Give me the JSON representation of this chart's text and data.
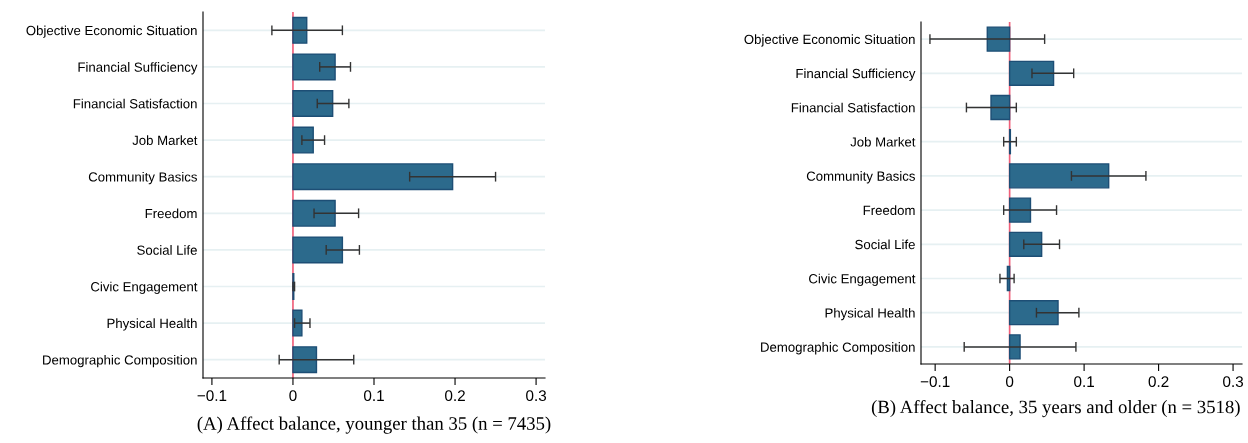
{
  "chart_data": [
    {
      "type": "bar",
      "orientation": "horizontal",
      "title": "(A) Affect balance, younger than 35 (n = 7435)",
      "categories": [
        "Objective Economic Situation",
        "Financial Sufficiency",
        "Financial Satisfaction",
        "Job Market",
        "Community Basics",
        "Freedom",
        "Social Life",
        "Civic Engagement",
        "Physical Health",
        "Demographic Composition"
      ],
      "values": [
        0.017,
        0.052,
        0.049,
        0.025,
        0.197,
        0.052,
        0.061,
        0.001,
        0.011,
        0.029
      ],
      "errors": [
        [
          -0.026,
          0.061
        ],
        [
          0.033,
          0.071
        ],
        [
          0.03,
          0.069
        ],
        [
          0.011,
          0.039
        ],
        [
          0.144,
          0.25
        ],
        [
          0.026,
          0.081
        ],
        [
          0.041,
          0.082
        ],
        [
          0.0,
          0.002
        ],
        [
          0.002,
          0.021
        ],
        [
          -0.017,
          0.075
        ]
      ],
      "color": "#2c6a8c",
      "xlim": [
        -0.111,
        0.311
      ],
      "xticks": [
        {
          "value": -0.1,
          "label": "−0.1"
        },
        0,
        0.1,
        0.2,
        0.3
      ],
      "ref_lines": [
        {
          "axis": "x",
          "value": 0,
          "color": "#f0607a"
        }
      ],
      "grid": "y"
    },
    {
      "type": "bar",
      "orientation": "horizontal",
      "title": "(B) Affect balance, 35 years and older (n = 3518)",
      "categories": [
        "Objective Economic Situation",
        "Financial Sufficiency",
        "Financial Satisfaction",
        "Job Market",
        "Community Basics",
        "Freedom",
        "Social Life",
        "Civic Engagement",
        "Physical Health",
        "Demographic Composition"
      ],
      "values": [
        -0.03,
        0.059,
        -0.025,
        0.001,
        0.133,
        0.028,
        0.043,
        -0.003,
        0.065,
        0.014
      ],
      "errors": [
        [
          -0.107,
          0.047
        ],
        [
          0.03,
          0.086
        ],
        [
          -0.058,
          0.009
        ],
        [
          -0.008,
          0.009
        ],
        [
          0.083,
          0.183
        ],
        [
          -0.008,
          0.063
        ],
        [
          0.019,
          0.067
        ],
        [
          -0.013,
          0.006
        ],
        [
          0.036,
          0.093
        ],
        [
          -0.061,
          0.089
        ]
      ],
      "color": "#2c6a8c",
      "xlim": [
        -0.119,
        0.312
      ],
      "xticks": [
        {
          "value": -0.1,
          "label": "−0.1"
        },
        0,
        0.1,
        0.2,
        0.3
      ],
      "ref_lines": [
        {
          "axis": "x",
          "value": 0,
          "color": "#f0607a"
        }
      ],
      "grid": "y"
    }
  ]
}
